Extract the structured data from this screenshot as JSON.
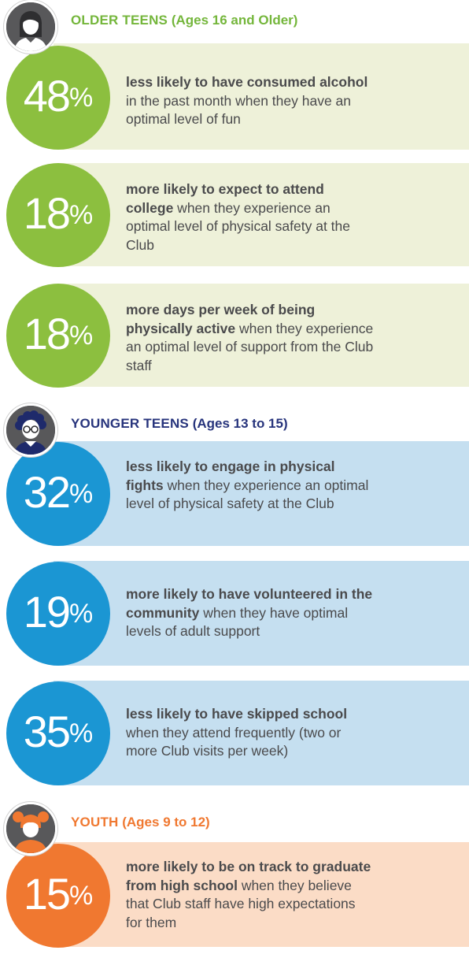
{
  "sections": [
    {
      "title_caps": "OLDER TEENS",
      "title_ages": "(Ages 16 and Older)",
      "avatar_icon": "teen-girl-avatar-icon",
      "accent_color": "#8cbf3f",
      "stats": [
        {
          "number": "48",
          "unit": "%",
          "bold": "less likely to have consumed alcohol",
          "rest": " in the past month when they have an optimal level of fun"
        },
        {
          "number": "18",
          "unit": "%",
          "bold": "more likely to expect to attend college",
          "rest": " when they experience an optimal level of physical safety at the Club"
        },
        {
          "number": "18",
          "unit": "%",
          "bold": "more days per week of being physically active",
          "rest": " when they experience an optimal level of support from the Club staff"
        }
      ]
    },
    {
      "title_caps": "YOUNGER TEENS",
      "title_ages": "(Ages 13 to 15)",
      "avatar_icon": "teen-glasses-avatar-icon",
      "accent_color": "#1b96d3",
      "stats": [
        {
          "number": "32",
          "unit": "%",
          "bold": "less likely to engage in physical fights",
          "rest": " when they experience an optimal level of physical safety at the Club"
        },
        {
          "number": "19",
          "unit": "%",
          "bold": "more likely to have volunteered in the community",
          "rest": " when they have optimal levels of adult support"
        },
        {
          "number": "35",
          "unit": "%",
          "bold": "less likely to have skipped school",
          "rest": " when they attend frequently (two or more Club visits per week)"
        }
      ]
    },
    {
      "title_caps": "YOUTH",
      "title_ages": "(Ages 9 to 12)",
      "avatar_icon": "child-pigtails-avatar-icon",
      "accent_color": "#f07830",
      "stats": [
        {
          "number": "15",
          "unit": "%",
          "bold": "more likely to be on track to graduate from high school",
          "rest": " when they believe that Club staff have high expectations for them"
        }
      ]
    }
  ]
}
